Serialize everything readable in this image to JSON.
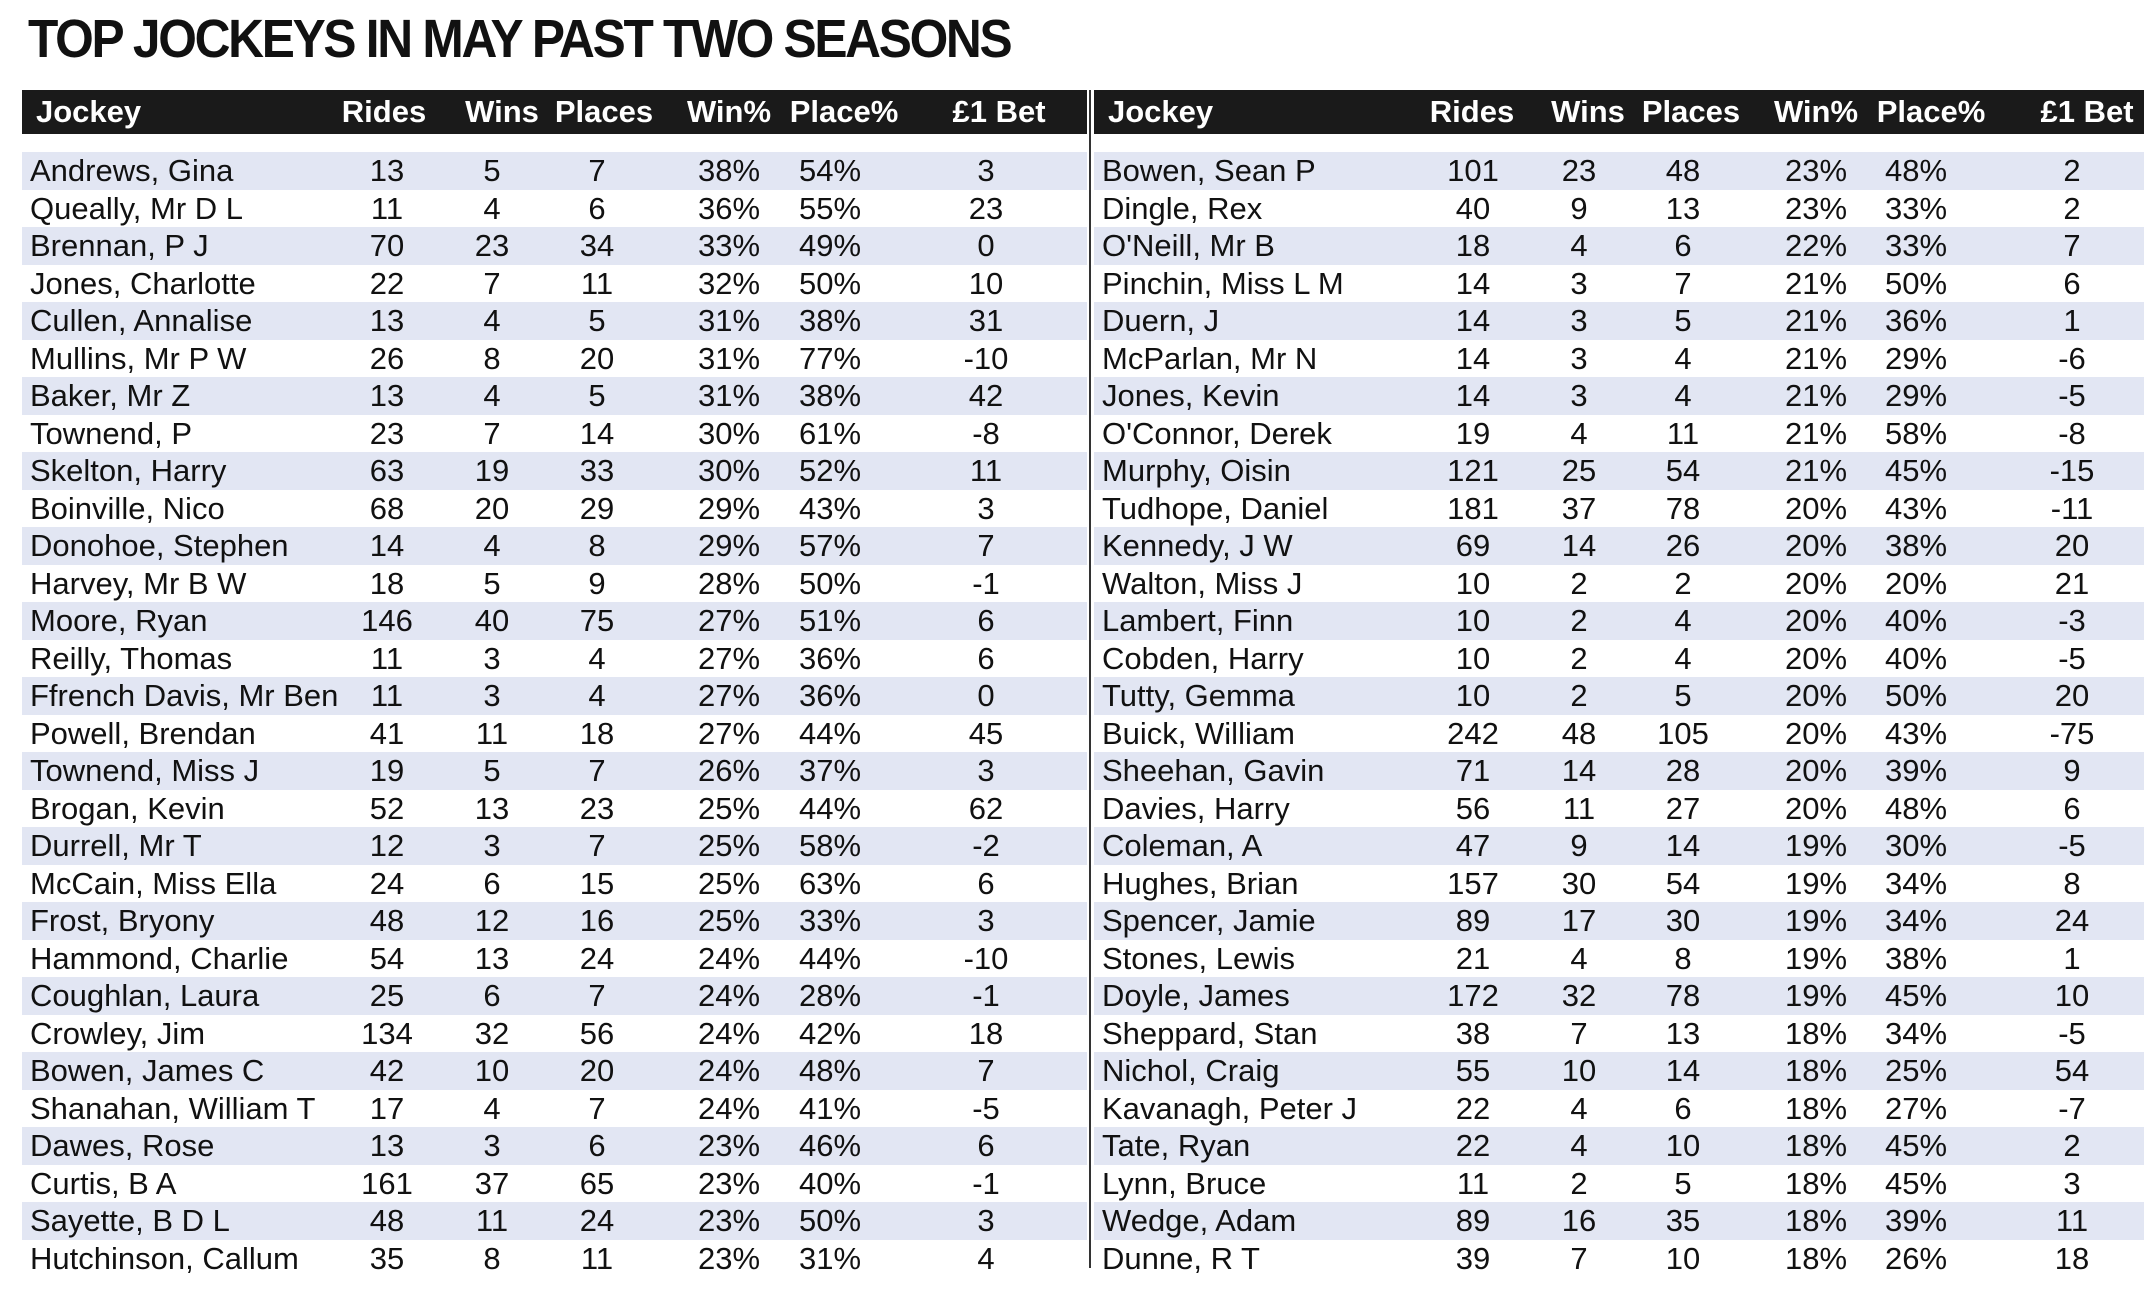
{
  "title": "TOP JOCKEYS IN MAY PAST TWO SEASONS",
  "chart_data": {
    "type": "table",
    "title": "TOP JOCKEYS IN MAY PAST TWO SEASONS",
    "columns": [
      "Jockey",
      "Rides",
      "Wins",
      "Places",
      "Win%",
      "Place%",
      "£1 Bet"
    ],
    "left_rows": [
      [
        "Andrews, Gina",
        "13",
        "5",
        "7",
        "38%",
        "54%",
        "3"
      ],
      [
        "Queally, Mr D L",
        "11",
        "4",
        "6",
        "36%",
        "55%",
        "23"
      ],
      [
        "Brennan, P J",
        "70",
        "23",
        "34",
        "33%",
        "49%",
        "0"
      ],
      [
        "Jones, Charlotte",
        "22",
        "7",
        "11",
        "32%",
        "50%",
        "10"
      ],
      [
        "Cullen, Annalise",
        "13",
        "4",
        "5",
        "31%",
        "38%",
        "31"
      ],
      [
        "Mullins, Mr P W",
        "26",
        "8",
        "20",
        "31%",
        "77%",
        "-10"
      ],
      [
        "Baker, Mr Z",
        "13",
        "4",
        "5",
        "31%",
        "38%",
        "42"
      ],
      [
        "Townend, P",
        "23",
        "7",
        "14",
        "30%",
        "61%",
        "-8"
      ],
      [
        "Skelton, Harry",
        "63",
        "19",
        "33",
        "30%",
        "52%",
        "11"
      ],
      [
        "Boinville, Nico",
        "68",
        "20",
        "29",
        "29%",
        "43%",
        "3"
      ],
      [
        "Donohoe, Stephen",
        "14",
        "4",
        "8",
        "29%",
        "57%",
        "7"
      ],
      [
        "Harvey, Mr B W",
        "18",
        "5",
        "9",
        "28%",
        "50%",
        "-1"
      ],
      [
        "Moore, Ryan",
        "146",
        "40",
        "75",
        "27%",
        "51%",
        "6"
      ],
      [
        "Reilly, Thomas",
        "11",
        "3",
        "4",
        "27%",
        "36%",
        "6"
      ],
      [
        "Ffrench Davis, Mr Ben",
        "11",
        "3",
        "4",
        "27%",
        "36%",
        "0"
      ],
      [
        "Powell, Brendan",
        "41",
        "11",
        "18",
        "27%",
        "44%",
        "45"
      ],
      [
        "Townend, Miss J",
        "19",
        "5",
        "7",
        "26%",
        "37%",
        "3"
      ],
      [
        "Brogan, Kevin",
        "52",
        "13",
        "23",
        "25%",
        "44%",
        "62"
      ],
      [
        "Durrell, Mr T",
        "12",
        "3",
        "7",
        "25%",
        "58%",
        "-2"
      ],
      [
        "McCain, Miss Ella",
        "24",
        "6",
        "15",
        "25%",
        "63%",
        "6"
      ],
      [
        "Frost, Bryony",
        "48",
        "12",
        "16",
        "25%",
        "33%",
        "3"
      ],
      [
        "Hammond, Charlie",
        "54",
        "13",
        "24",
        "24%",
        "44%",
        "-10"
      ],
      [
        "Coughlan, Laura",
        "25",
        "6",
        "7",
        "24%",
        "28%",
        "-1"
      ],
      [
        "Crowley, Jim",
        "134",
        "32",
        "56",
        "24%",
        "42%",
        "18"
      ],
      [
        "Bowen, James C",
        "42",
        "10",
        "20",
        "24%",
        "48%",
        "7"
      ],
      [
        "Shanahan, William T",
        "17",
        "4",
        "7",
        "24%",
        "41%",
        "-5"
      ],
      [
        "Dawes, Rose",
        "13",
        "3",
        "6",
        "23%",
        "46%",
        "6"
      ],
      [
        "Curtis, B A",
        "161",
        "37",
        "65",
        "23%",
        "40%",
        "-1"
      ],
      [
        "Sayette, B D L",
        "48",
        "11",
        "24",
        "23%",
        "50%",
        "3"
      ],
      [
        "Hutchinson, Callum",
        "35",
        "8",
        "11",
        "23%",
        "31%",
        "4"
      ]
    ],
    "right_rows": [
      [
        "Bowen, Sean P",
        "101",
        "23",
        "48",
        "23%",
        "48%",
        "2"
      ],
      [
        "Dingle, Rex",
        "40",
        "9",
        "13",
        "23%",
        "33%",
        "2"
      ],
      [
        "O'Neill, Mr B",
        "18",
        "4",
        "6",
        "22%",
        "33%",
        "7"
      ],
      [
        "Pinchin, Miss L M",
        "14",
        "3",
        "7",
        "21%",
        "50%",
        "6"
      ],
      [
        "Duern, J",
        "14",
        "3",
        "5",
        "21%",
        "36%",
        "1"
      ],
      [
        "McParlan, Mr N",
        "14",
        "3",
        "4",
        "21%",
        "29%",
        "-6"
      ],
      [
        "Jones, Kevin",
        "14",
        "3",
        "4",
        "21%",
        "29%",
        "-5"
      ],
      [
        "O'Connor, Derek",
        "19",
        "4",
        "11",
        "21%",
        "58%",
        "-8"
      ],
      [
        "Murphy, Oisin",
        "121",
        "25",
        "54",
        "21%",
        "45%",
        "-15"
      ],
      [
        "Tudhope, Daniel",
        "181",
        "37",
        "78",
        "20%",
        "43%",
        "-11"
      ],
      [
        "Kennedy, J W",
        "69",
        "14",
        "26",
        "20%",
        "38%",
        "20"
      ],
      [
        "Walton, Miss J",
        "10",
        "2",
        "2",
        "20%",
        "20%",
        "21"
      ],
      [
        "Lambert, Finn",
        "10",
        "2",
        "4",
        "20%",
        "40%",
        "-3"
      ],
      [
        "Cobden, Harry",
        "10",
        "2",
        "4",
        "20%",
        "40%",
        "-5"
      ],
      [
        "Tutty, Gemma",
        "10",
        "2",
        "5",
        "20%",
        "50%",
        "20"
      ],
      [
        "Buick, William",
        "242",
        "48",
        "105",
        "20%",
        "43%",
        "-75"
      ],
      [
        "Sheehan, Gavin",
        "71",
        "14",
        "28",
        "20%",
        "39%",
        "9"
      ],
      [
        "Davies, Harry",
        "56",
        "11",
        "27",
        "20%",
        "48%",
        "6"
      ],
      [
        "Coleman, A",
        "47",
        "9",
        "14",
        "19%",
        "30%",
        "-5"
      ],
      [
        "Hughes, Brian",
        "157",
        "30",
        "54",
        "19%",
        "34%",
        "8"
      ],
      [
        "Spencer, Jamie",
        "89",
        "17",
        "30",
        "19%",
        "34%",
        "24"
      ],
      [
        "Stones, Lewis",
        "21",
        "4",
        "8",
        "19%",
        "38%",
        "1"
      ],
      [
        "Doyle, James",
        "172",
        "32",
        "78",
        "19%",
        "45%",
        "10"
      ],
      [
        "Sheppard, Stan",
        "38",
        "7",
        "13",
        "18%",
        "34%",
        "-5"
      ],
      [
        "Nichol, Craig",
        "55",
        "10",
        "14",
        "18%",
        "25%",
        "54"
      ],
      [
        "Kavanagh, Peter J",
        "22",
        "4",
        "6",
        "18%",
        "27%",
        "-7"
      ],
      [
        "Tate, Ryan",
        "22",
        "4",
        "10",
        "18%",
        "45%",
        "2"
      ],
      [
        "Lynn, Bruce",
        "11",
        "2",
        "5",
        "18%",
        "45%",
        "3"
      ],
      [
        "Wedge, Adam",
        "89",
        "16",
        "35",
        "18%",
        "39%",
        "11"
      ],
      [
        "Dunne, R T",
        "39",
        "7",
        "10",
        "18%",
        "26%",
        "18"
      ]
    ],
    "colors": {
      "header_bg": "#1a1a1a",
      "header_text": "#ffffff",
      "stripe": "#e2e6f3"
    }
  }
}
